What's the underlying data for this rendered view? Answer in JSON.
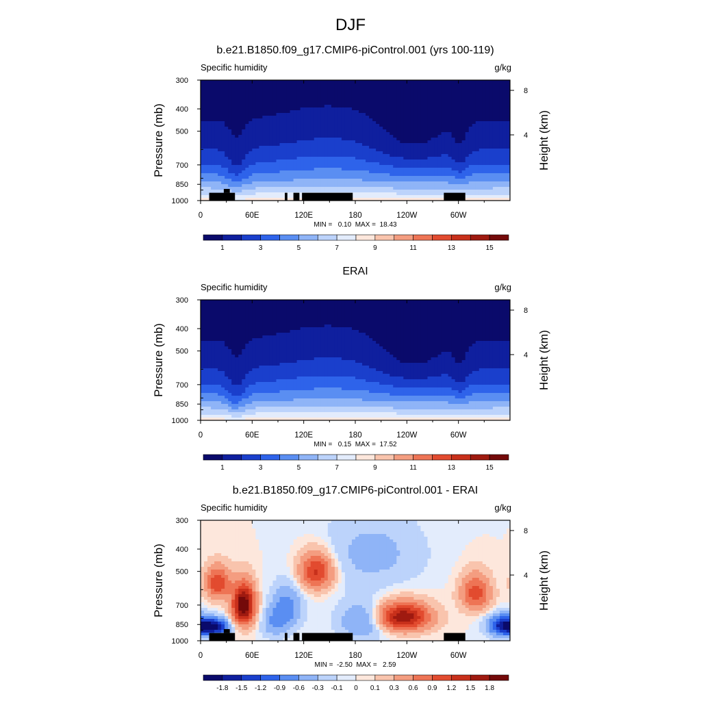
{
  "suptitle": "DJF",
  "colors": {
    "seq": [
      "#0a0a6b",
      "#0f1f9e",
      "#1a3fcc",
      "#2e63ea",
      "#5a8ef2",
      "#8fb4f7",
      "#bcd3fb",
      "#e3ecfc",
      "#fde7dc",
      "#f9c4ad",
      "#f49d80",
      "#ee7455",
      "#e24b2f",
      "#c8301b",
      "#9f1a10",
      "#740a0a"
    ],
    "diff": [
      "#0a0a6b",
      "#0f1f9e",
      "#1a3fcc",
      "#2e63ea",
      "#5a8ef2",
      "#8fb4f7",
      "#bcd3fb",
      "#e3ecfc",
      "#fde7dc",
      "#f9c4ad",
      "#f49d80",
      "#ee7455",
      "#e24b2f",
      "#c8301b",
      "#9f1a10",
      "#740a0a"
    ],
    "topography": "#000000"
  },
  "chart_data": [
    {
      "type": "heatmap",
      "title": "b.e21.B1850.f09_g17.CMIP6-piControl.001 (yrs 100-119)",
      "left_label": "Specific humidity",
      "right_label": "g/kg",
      "ylabel": "Pressure (mb)",
      "ylabel_right": "Height (km)",
      "y_ticks": [
        "300",
        "400",
        "500",
        "700",
        "850",
        "1000"
      ],
      "y_right_ticks": [
        "8",
        "4"
      ],
      "x_ticks": [
        "0",
        "60E",
        "120E",
        "180",
        "120W",
        "60W"
      ],
      "x_values_deg": [
        0,
        60,
        120,
        180,
        240,
        300
      ],
      "x_range_deg": [
        0,
        360
      ],
      "y_range_mb": [
        1000,
        300
      ],
      "y_scale": "log",
      "min_max_text": "MIN =   0.10  MAX =  18.43",
      "min": 0.1,
      "max": 18.43,
      "colorbar_labels": [
        "1",
        "3",
        "5",
        "7",
        "9",
        "11",
        "13",
        "15"
      ],
      "colorbar_values": [
        1,
        3,
        5,
        7,
        9,
        11,
        13,
        15
      ],
      "colormap": "seq",
      "has_topography": true
    },
    {
      "type": "heatmap",
      "title": "ERAI",
      "left_label": "Specific humidity",
      "right_label": "g/kg",
      "ylabel": "Pressure (mb)",
      "ylabel_right": "Height (km)",
      "y_ticks": [
        "300",
        "400",
        "500",
        "700",
        "850",
        "1000"
      ],
      "y_right_ticks": [
        "8",
        "4"
      ],
      "x_ticks": [
        "0",
        "60E",
        "120E",
        "180",
        "120W",
        "60W"
      ],
      "x_values_deg": [
        0,
        60,
        120,
        180,
        240,
        300
      ],
      "x_range_deg": [
        0,
        360
      ],
      "y_range_mb": [
        1000,
        300
      ],
      "y_scale": "log",
      "min_max_text": "MIN =   0.15  MAX =  17.52",
      "min": 0.15,
      "max": 17.52,
      "colorbar_labels": [
        "1",
        "3",
        "5",
        "7",
        "9",
        "11",
        "13",
        "15"
      ],
      "colorbar_values": [
        1,
        3,
        5,
        7,
        9,
        11,
        13,
        15
      ],
      "colormap": "seq",
      "has_topography": false
    },
    {
      "type": "heatmap",
      "title": "b.e21.B1850.f09_g17.CMIP6-piControl.001 - ERAI",
      "left_label": "Specific humidity",
      "right_label": "g/kg",
      "ylabel": "Pressure (mb)",
      "ylabel_right": "Height (km)",
      "y_ticks": [
        "300",
        "400",
        "500",
        "700",
        "850",
        "1000"
      ],
      "y_right_ticks": [
        "8",
        "4"
      ],
      "x_ticks": [
        "0",
        "60E",
        "120E",
        "180",
        "120W",
        "60W"
      ],
      "x_values_deg": [
        0,
        60,
        120,
        180,
        240,
        300
      ],
      "x_range_deg": [
        0,
        360
      ],
      "y_range_mb": [
        1000,
        300
      ],
      "y_scale": "log",
      "min_max_text": "MIN =  -2.50  MAX =   2.59",
      "min": -2.5,
      "max": 2.59,
      "colorbar_labels": [
        "-1.8",
        "-1.5",
        "-1.2",
        "-0.9",
        "-0.6",
        "-0.3",
        "-0.1",
        "0",
        "0.1",
        "0.3",
        "0.6",
        "0.9",
        "1.2",
        "1.5",
        "1.8"
      ],
      "colorbar_values": [
        -1.8,
        -1.5,
        -1.2,
        -0.9,
        -0.6,
        -0.3,
        -0.1,
        0,
        0.1,
        0.3,
        0.6,
        0.9,
        1.2,
        1.5,
        1.8
      ],
      "colormap": "diff",
      "has_topography": true
    }
  ]
}
